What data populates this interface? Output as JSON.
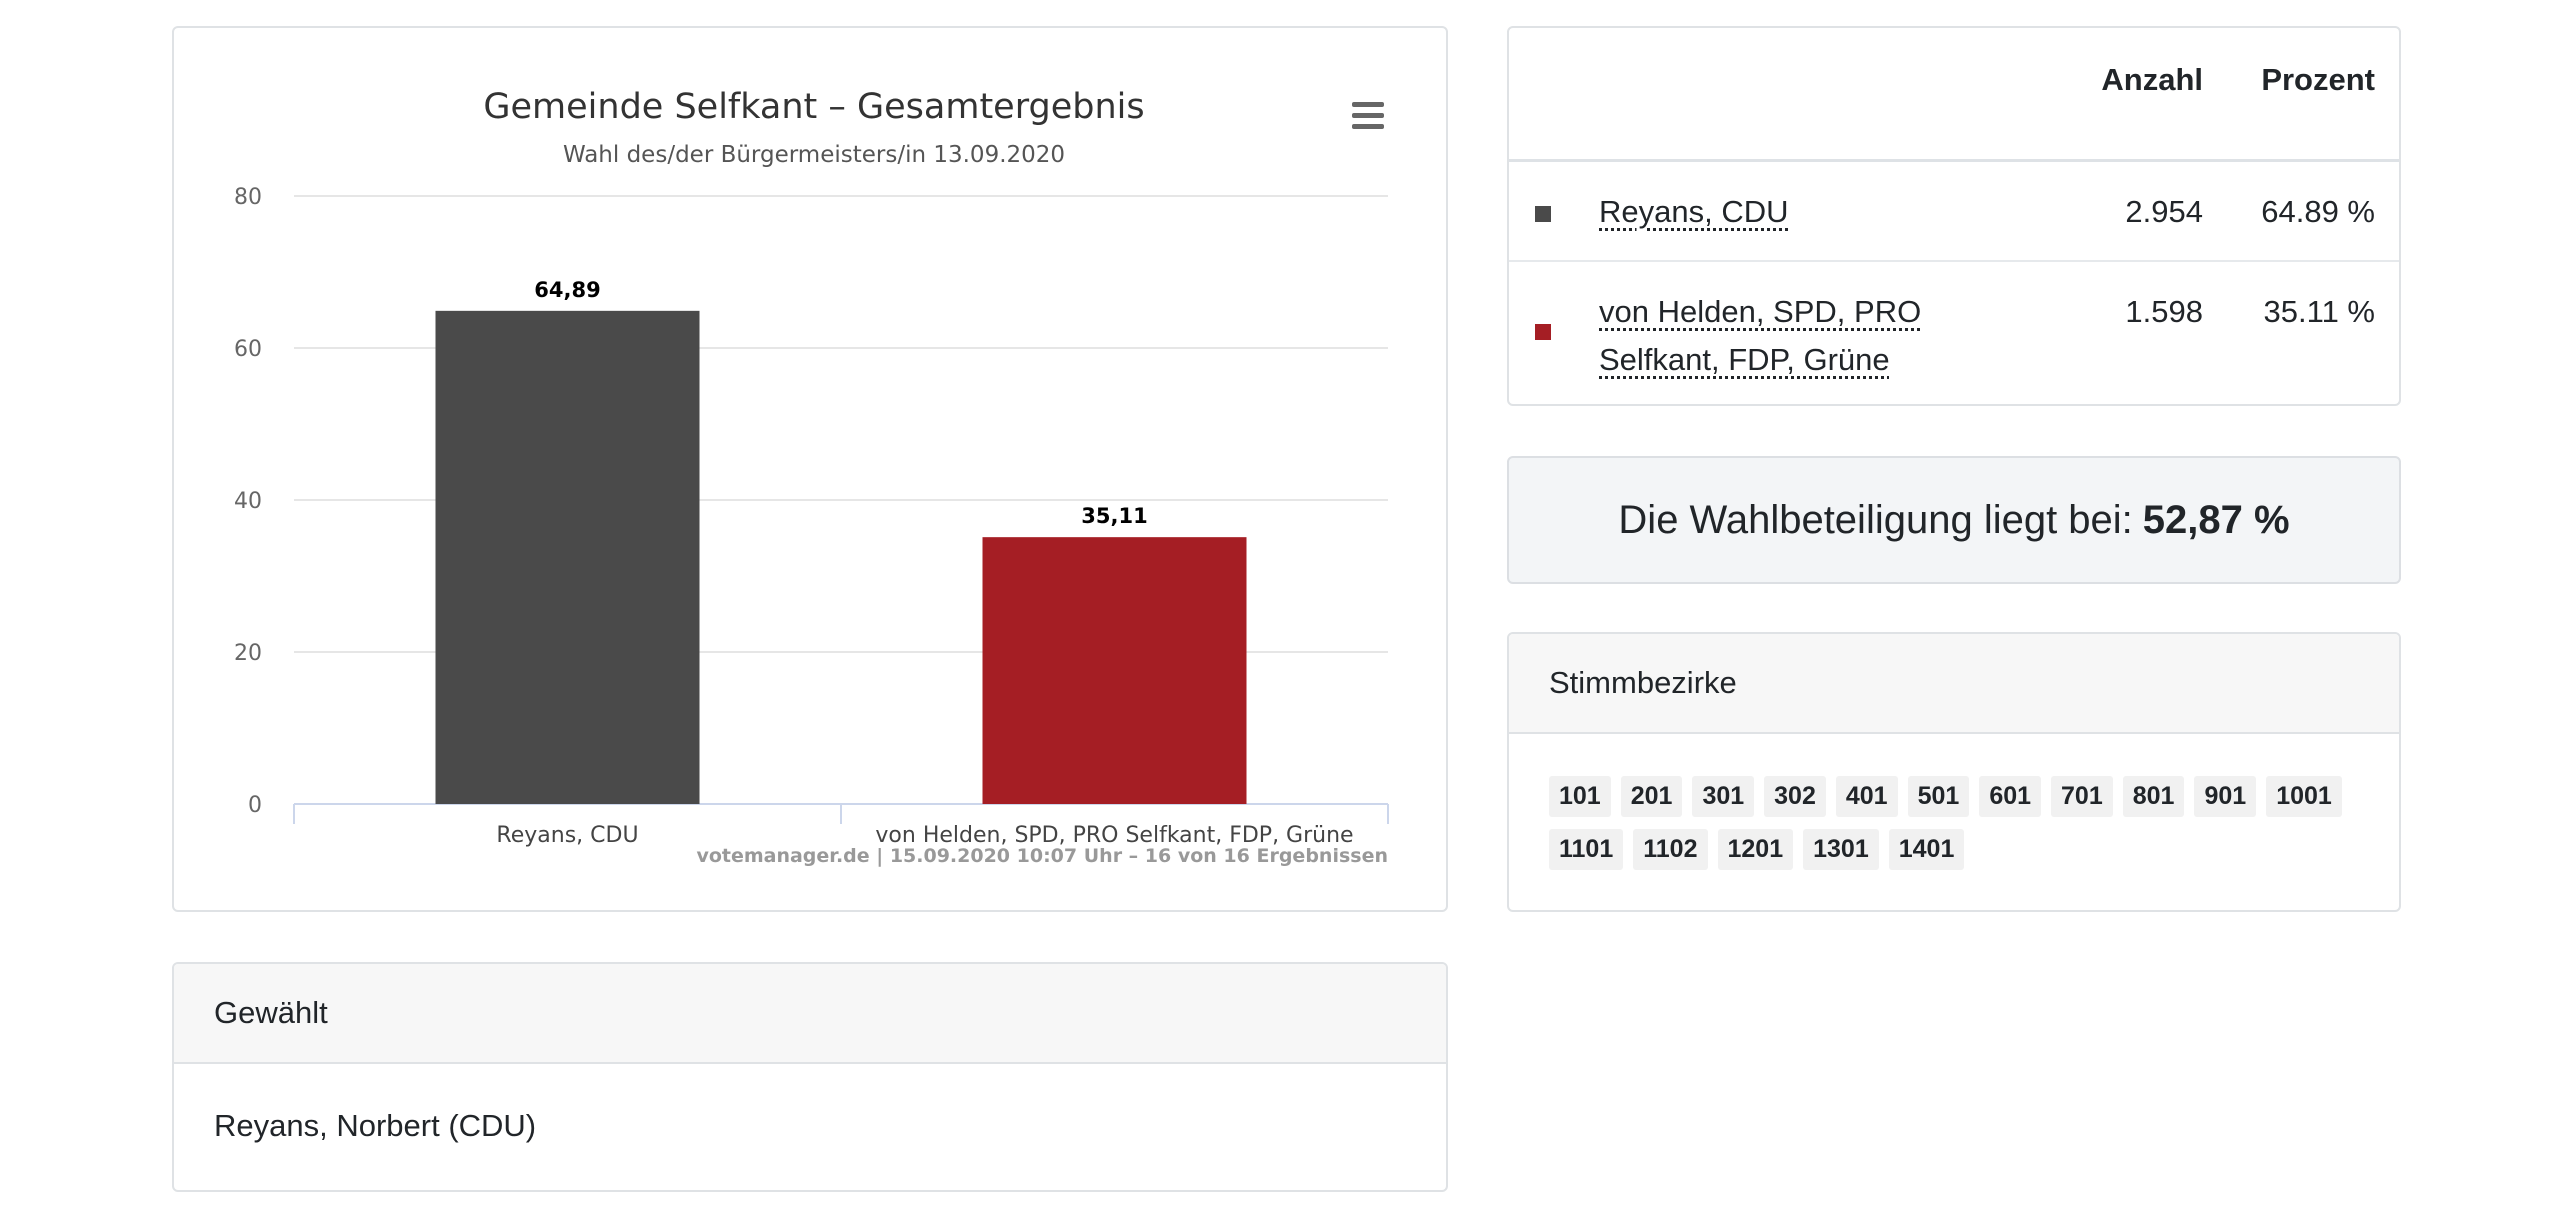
{
  "chart_data": {
    "type": "bar",
    "title": "Gemeinde Selfkant – Gesamtergebnis",
    "subtitle": "Wahl des/der Bürgermeisters/in 13.09.2020",
    "categories": [
      "Reyans, CDU",
      "von Helden, SPD, PRO Selfkant, FDP, Grüne"
    ],
    "values": [
      64.89,
      35.11
    ],
    "value_labels": [
      "64,89",
      "35,11"
    ],
    "colors": [
      "#4a4a4a",
      "#a51e24"
    ],
    "ylim": [
      0,
      80
    ],
    "yticks": [
      0,
      20,
      40,
      60,
      80
    ],
    "grid": true,
    "credits": "votemanager.de | 15.09.2020 10:07 Uhr – 16 von 16 Ergebnissen"
  },
  "results": {
    "headers": {
      "count": "Anzahl",
      "percent": "Prozent"
    },
    "rows": [
      {
        "name": "Reyans, CDU",
        "count": "2.954",
        "percent": "64.89 %",
        "color": "#4a4a4a"
      },
      {
        "name": "von Helden, SPD, PRO Selfkant, FDP, Grüne",
        "count": "1.598",
        "percent": "35.11 %",
        "color": "#a51e24"
      }
    ]
  },
  "turnout": {
    "label": "Die Wahlbeteiligung liegt bei:",
    "value": "52,87 %"
  },
  "districts": {
    "title": "Stimmbezirke",
    "items": [
      "101",
      "201",
      "301",
      "302",
      "401",
      "501",
      "601",
      "701",
      "801",
      "901",
      "1001",
      "1101",
      "1102",
      "1201",
      "1301",
      "1401"
    ]
  },
  "elected": {
    "title": "Gewählt",
    "name": "Reyans, Norbert (CDU)"
  }
}
